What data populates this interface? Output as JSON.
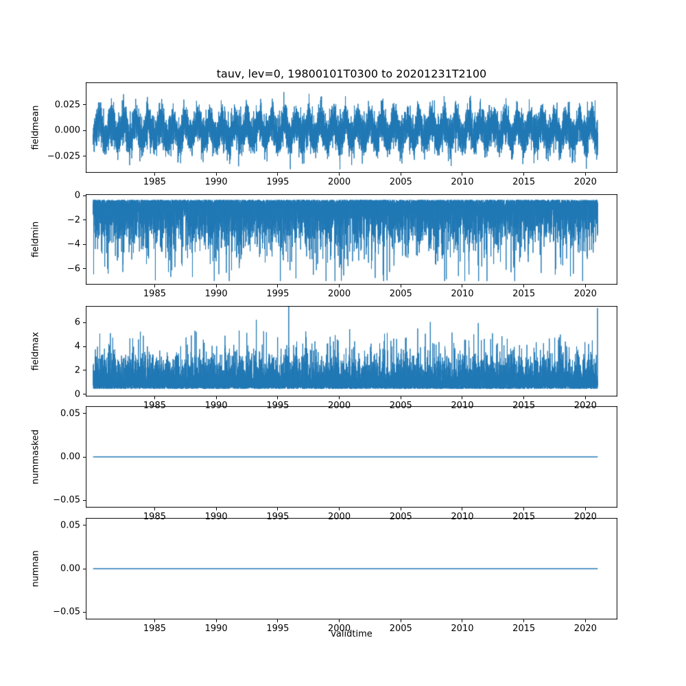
{
  "chart_data": {
    "type": "line",
    "title": "tauv, lev=0, 19800101T0300 to 20201231T2100",
    "xlabel": "validtime",
    "line_color": "#1f77b4",
    "axis_color": "#000000",
    "x_range": [
      1980.0,
      2021.0
    ],
    "xlim": [
      1979.4,
      2022.6
    ],
    "xticks": [
      1985,
      1990,
      1995,
      2000,
      2005,
      2010,
      2015,
      2020
    ],
    "xtick_labels": [
      "1985",
      "1990",
      "1995",
      "2000",
      "2005",
      "2010",
      "2015",
      "2020"
    ],
    "grid": false,
    "legend": "none",
    "subplots": [
      {
        "ylabel": "fieldmean",
        "yticks": [
          0.025,
          0.0,
          -0.025
        ],
        "ytick_labels": [
          "0.025",
          "0.000",
          "−0.025"
        ],
        "ylim": [
          -0.0413,
          0.0467
        ],
        "signal": {
          "kind": "noisy",
          "baseline": 0.0,
          "seasonal_amplitude": 0.008,
          "noise_sd": 0.009,
          "data_min": -0.038,
          "data_max": 0.044
        }
      },
      {
        "ylabel": "fieldmin",
        "yticks": [
          0,
          -2,
          -4,
          -6
        ],
        "ytick_labels": [
          "0",
          "−2",
          "−4",
          "−6"
        ],
        "ylim": [
          -7.3,
          0.12
        ],
        "signal": {
          "kind": "neg-extreme",
          "offset": -0.35,
          "scale": 1.15,
          "spike_prob": 0.01,
          "spike_scale": 1.6,
          "data_min": -7.0,
          "data_max": -0.28
        }
      },
      {
        "ylabel": "fieldmax",
        "yticks": [
          6,
          4,
          2,
          0
        ],
        "ytick_labels": [
          "6",
          "4",
          "2",
          "0"
        ],
        "ylim": [
          -0.2,
          7.4
        ],
        "signal": {
          "kind": "pos-extreme",
          "offset": 0.45,
          "scale": 0.85,
          "spike_prob": 0.012,
          "spike_scale": 1.3,
          "data_min": 0.35,
          "data_max": 7.4
        }
      },
      {
        "ylabel": "nummasked",
        "yticks": [
          0.05,
          0.0,
          -0.05
        ],
        "ytick_labels": [
          "0.05",
          "0.00",
          "−0.05"
        ],
        "ylim": [
          -0.0587,
          0.0587
        ],
        "signal": {
          "kind": "constant",
          "value": 0.0
        }
      },
      {
        "ylabel": "numnan",
        "yticks": [
          0.05,
          0.0,
          -0.05
        ],
        "ytick_labels": [
          "0.05",
          "0.00",
          "−0.05"
        ],
        "ylim": [
          -0.0587,
          0.0587
        ],
        "signal": {
          "kind": "constant",
          "value": 0.0
        }
      }
    ]
  }
}
